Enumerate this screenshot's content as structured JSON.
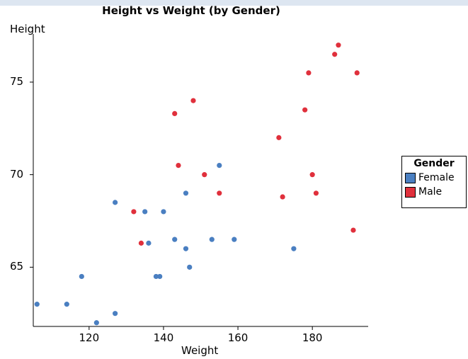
{
  "chart_data": {
    "type": "scatter",
    "title": "Height vs Weight (by Gender)",
    "xlabel": "Weight",
    "ylabel": "Height",
    "xlim": [
      105,
      195
    ],
    "ylim": [
      61.8,
      77.6
    ],
    "xticks": [
      120,
      140,
      160,
      180
    ],
    "yticks": [
      65,
      70,
      75
    ],
    "grid": false,
    "legend": {
      "title": "Gender",
      "position": "right"
    },
    "series": [
      {
        "name": "Female",
        "color": "#4a7fc1",
        "points": [
          [
            106,
            63
          ],
          [
            114,
            63
          ],
          [
            118,
            64.5
          ],
          [
            122,
            62
          ],
          [
            127,
            62.5
          ],
          [
            127,
            68.5
          ],
          [
            135,
            68
          ],
          [
            136,
            66.3
          ],
          [
            138,
            64.5
          ],
          [
            139,
            64.5
          ],
          [
            140,
            68
          ],
          [
            143,
            66.5
          ],
          [
            146,
            69
          ],
          [
            146,
            66
          ],
          [
            147,
            65
          ],
          [
            153,
            66.5
          ],
          [
            155,
            70.5
          ],
          [
            159,
            66.5
          ],
          [
            175,
            66
          ]
        ]
      },
      {
        "name": "Male",
        "color": "#e0303c",
        "points": [
          [
            132,
            68
          ],
          [
            134,
            66.3
          ],
          [
            143,
            73.3
          ],
          [
            144,
            70.5
          ],
          [
            148,
            74
          ],
          [
            151,
            70
          ],
          [
            155,
            69
          ],
          [
            171,
            72
          ],
          [
            172,
            68.8
          ],
          [
            178,
            73.5
          ],
          [
            179,
            75.5
          ],
          [
            180,
            70
          ],
          [
            181,
            69
          ],
          [
            186,
            76.5
          ],
          [
            187,
            77
          ],
          [
            191,
            67
          ],
          [
            192,
            75.5
          ]
        ]
      }
    ]
  }
}
